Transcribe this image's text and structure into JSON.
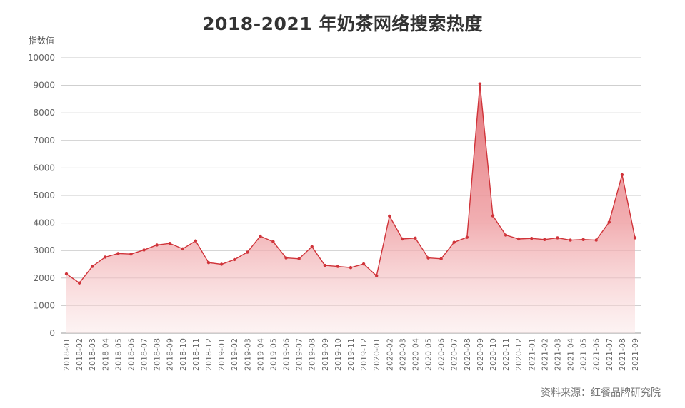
{
  "chart_data": {
    "type": "area",
    "title": "2018-2021 年奶茶网络搜索热度",
    "ylabel": "指数值",
    "xlabel": "",
    "ylim": [
      0,
      10000
    ],
    "yticks": [
      0,
      1000,
      2000,
      3000,
      4000,
      5000,
      6000,
      7000,
      8000,
      9000,
      10000
    ],
    "grid": true,
    "categories": [
      "2018-01",
      "2018-02",
      "2018-03",
      "2018-04",
      "2018-05",
      "2018-06",
      "2018-07",
      "2018-08",
      "2018-09",
      "2018-10",
      "2018-11",
      "2018-12",
      "2019-01",
      "2019-02",
      "2019-03",
      "2019-04",
      "2019-05",
      "2019-06",
      "2019-07",
      "2019-08",
      "2019-09",
      "2019-10",
      "2019-11",
      "2019-12",
      "2020-01",
      "2020-02",
      "2020-03",
      "2020-04",
      "2020-05",
      "2020-06",
      "2020-07",
      "2020-08",
      "2020-09",
      "2020-10",
      "2020-11",
      "2020-12",
      "2021-01",
      "2021-02",
      "2021-03",
      "2021-04",
      "2021-05",
      "2021-06",
      "2021-07",
      "2021-08",
      "2021-09"
    ],
    "series": [
      {
        "values": [
          2150,
          1820,
          2420,
          2760,
          2890,
          2870,
          3020,
          3200,
          3260,
          3060,
          3350,
          2560,
          2500,
          2670,
          2940,
          3520,
          3320,
          2730,
          2700,
          3140,
          2460,
          2420,
          2380,
          2510,
          2080,
          4250,
          3420,
          3450,
          2730,
          2700,
          3300,
          3480,
          9050,
          4260,
          3560,
          3420,
          3440,
          3400,
          3460,
          3380,
          3400,
          3380,
          4030,
          5750,
          3460
        ]
      }
    ],
    "colors": {
      "line": "#d0343a",
      "fill_top": "#e36d73",
      "fill_bottom": "#fbe7e7",
      "grid": "#c8c8c8"
    }
  },
  "source": "资料来源：红餐品牌研究院"
}
